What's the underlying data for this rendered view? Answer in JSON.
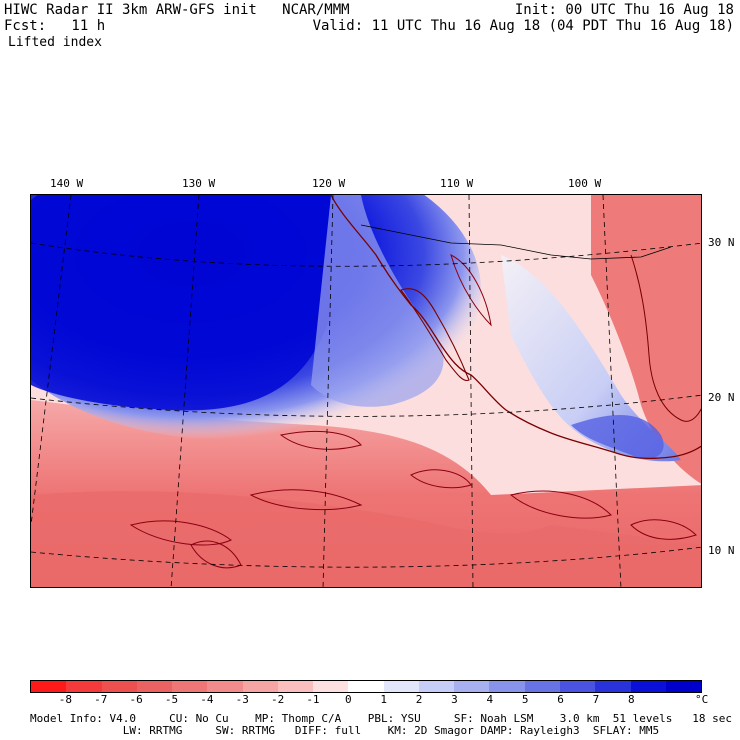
{
  "header": {
    "title": "HIWC Radar II 3km ARW-GFS init   NCAR/MMM",
    "fcst": "Fcst:   11 h",
    "init": "Init: 00 UTC Thu 16 Aug 18",
    "valid": "Valid: 11 UTC Thu 16 Aug 18 (04 PDT Thu 16 Aug 18)",
    "field": "Lifted index"
  },
  "map": {
    "lon_labels": [
      "140 W",
      "130 W",
      "120 W",
      "110 W",
      "100 W"
    ],
    "lat_labels": [
      "30 N",
      "20 N",
      "10 N"
    ]
  },
  "colorbar": {
    "unit": "°C",
    "ticks": [
      "-8",
      "-7",
      "-6",
      "-5",
      "-4",
      "-3",
      "-2",
      "-1",
      "0",
      "1",
      "2",
      "3",
      "4",
      "5",
      "6",
      "7",
      "8"
    ],
    "colors": [
      "#ff1a1a",
      "#f43a3a",
      "#ee4f4f",
      "#ea6262",
      "#ee7676",
      "#f28c8c",
      "#f6a5a5",
      "#fabebe",
      "#fde0e0",
      "#ffffff",
      "#e2e6fb",
      "#c6cdf6",
      "#a8b1f0",
      "#8894ea",
      "#6874e4",
      "#4a54e0",
      "#2a32dc",
      "#0a10d8",
      "#0000cc"
    ]
  },
  "footer": {
    "line1": "Model Info: V4.0     CU: No Cu    MP: Thomp C/A    PBL: YSU     SF: Noah LSM    3.0 km  51 levels   18 sec",
    "line2": "              LW: RRTMG     SW: RRTMG   DIFF: full    KM: 2D Smagor DAMP: Rayleigh3  SFLAY: MM5"
  }
}
